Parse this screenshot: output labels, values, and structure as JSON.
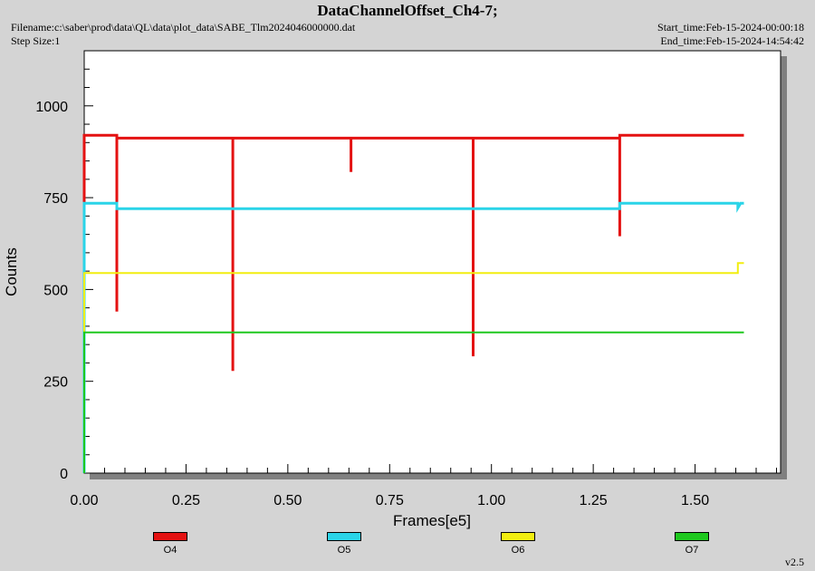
{
  "header": {
    "title": "DataChannelOffset_Ch4-7;",
    "filename": "Filename:c:\\saber\\prod\\data\\QL\\data\\plot_data\\SABE_Tlm2024046000000.dat",
    "step_size": "Step Size:1",
    "start_time": "Start_time:Feb-15-2024-00:00:18",
    "end_time": "End_time:Feb-15-2024-14:54:42"
  },
  "version": "v2.5",
  "chart_data": {
    "type": "line",
    "title": "DataChannelOffset_Ch4-7;",
    "xlabel": "Frames[e5]",
    "ylabel": "Counts",
    "xlim": [
      0,
      1.71
    ],
    "ylim": [
      0,
      1150
    ],
    "x_ticks": [
      "0.00",
      "0.25",
      "0.50",
      "0.75",
      "1.00",
      "1.25",
      "1.50"
    ],
    "y_ticks": [
      "0",
      "250",
      "500",
      "750",
      "1000"
    ],
    "legend_position": "bottom",
    "series": [
      {
        "name": "O4",
        "color": "#e41212",
        "width": 3,
        "points": [
          [
            0,
            0
          ],
          [
            0,
            920
          ],
          [
            0.08,
            920
          ],
          [
            0.08,
            440
          ],
          [
            0.08,
            912
          ],
          [
            0.365,
            912
          ],
          [
            0.365,
            278
          ],
          [
            0.365,
            912
          ],
          [
            0.655,
            912
          ],
          [
            0.655,
            820
          ],
          [
            0.655,
            912
          ],
          [
            0.955,
            912
          ],
          [
            0.955,
            318
          ],
          [
            0.955,
            912
          ],
          [
            1.315,
            912
          ],
          [
            1.315,
            645
          ],
          [
            1.315,
            920
          ],
          [
            1.62,
            920
          ]
        ]
      },
      {
        "name": "O5",
        "color": "#2ad4e8",
        "width": 3,
        "points": [
          [
            0,
            0
          ],
          [
            0,
            735
          ],
          [
            0.08,
            735
          ],
          [
            0.08,
            720
          ],
          [
            1.315,
            720
          ],
          [
            1.315,
            735
          ],
          [
            1.605,
            735
          ],
          [
            1.605,
            722
          ],
          [
            1.612,
            735
          ],
          [
            1.62,
            735
          ]
        ]
      },
      {
        "name": "O6",
        "color": "#f2ee10",
        "width": 2,
        "points": [
          [
            0,
            0
          ],
          [
            0,
            545
          ],
          [
            1.605,
            545
          ],
          [
            1.605,
            572
          ],
          [
            1.62,
            572
          ]
        ]
      },
      {
        "name": "O7",
        "color": "#1ec81e",
        "width": 2,
        "points": [
          [
            0,
            0
          ],
          [
            0,
            383
          ],
          [
            1.62,
            383
          ]
        ]
      }
    ]
  }
}
